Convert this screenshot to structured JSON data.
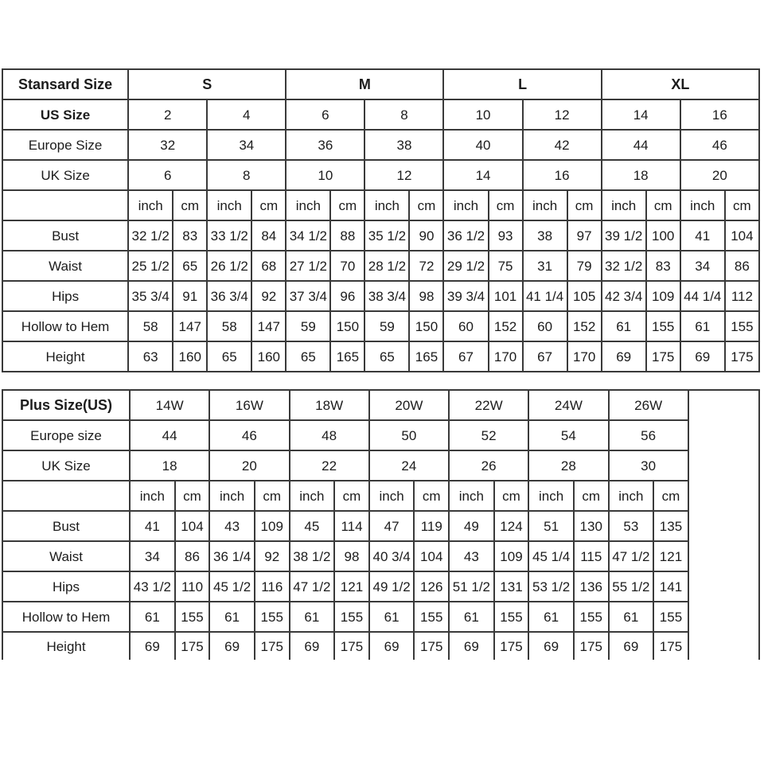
{
  "standard_table": {
    "corner_label": "Stansard Size",
    "size_groups": [
      "S",
      "M",
      "L",
      "XL"
    ],
    "size_groups_bold": true,
    "size_rows": [
      {
        "label": "US Size",
        "bold": true,
        "values": [
          "2",
          "4",
          "6",
          "8",
          "10",
          "12",
          "14",
          "16"
        ]
      },
      {
        "label": "Europe Size",
        "bold": false,
        "values": [
          "32",
          "34",
          "36",
          "38",
          "40",
          "42",
          "44",
          "46"
        ]
      },
      {
        "label": "UK Size",
        "bold": false,
        "values": [
          "6",
          "8",
          "10",
          "12",
          "14",
          "16",
          "18",
          "20"
        ]
      }
    ],
    "unit_row": {
      "units": [
        "inch",
        "cm"
      ]
    },
    "measurement_rows": [
      {
        "label": "Bust",
        "values": [
          "32 1/2",
          "83",
          "33 1/2",
          "84",
          "34 1/2",
          "88",
          "35 1/2",
          "90",
          "36 1/2",
          "93",
          "38",
          "97",
          "39 1/2",
          "100",
          "41",
          "104"
        ]
      },
      {
        "label": "Waist",
        "values": [
          "25 1/2",
          "65",
          "26 1/2",
          "68",
          "27 1/2",
          "70",
          "28 1/2",
          "72",
          "29 1/2",
          "75",
          "31",
          "79",
          "32 1/2",
          "83",
          "34",
          "86"
        ]
      },
      {
        "label": "Hips",
        "values": [
          "35 3/4",
          "91",
          "36 3/4",
          "92",
          "37 3/4",
          "96",
          "38 3/4",
          "98",
          "39 3/4",
          "101",
          "41 1/4",
          "105",
          "42 3/4",
          "109",
          "44 1/4",
          "112"
        ]
      },
      {
        "label": "Hollow to Hem",
        "values": [
          "58",
          "147",
          "58",
          "147",
          "59",
          "150",
          "59",
          "150",
          "60",
          "152",
          "60",
          "152",
          "61",
          "155",
          "61",
          "155"
        ]
      },
      {
        "label": "Height",
        "values": [
          "63",
          "160",
          "65",
          "160",
          "65",
          "165",
          "65",
          "165",
          "67",
          "170",
          "67",
          "170",
          "69",
          "175",
          "69",
          "175"
        ]
      }
    ],
    "trailing_empty_column": false
  },
  "plus_table": {
    "corner_label": "Plus Size(US)",
    "size_groups": [
      "14W",
      "16W",
      "18W",
      "20W",
      "22W",
      "24W",
      "26W"
    ],
    "size_groups_bold": false,
    "size_rows": [
      {
        "label": "Europe size",
        "bold": false,
        "values": [
          "44",
          "46",
          "48",
          "50",
          "52",
          "54",
          "56"
        ]
      },
      {
        "label": "UK Size",
        "bold": false,
        "values": [
          "18",
          "20",
          "22",
          "24",
          "26",
          "28",
          "30"
        ]
      }
    ],
    "unit_row": {
      "units": [
        "inch",
        "cm"
      ]
    },
    "measurement_rows": [
      {
        "label": "Bust",
        "values": [
          "41",
          "104",
          "43",
          "109",
          "45",
          "114",
          "47",
          "119",
          "49",
          "124",
          "51",
          "130",
          "53",
          "135"
        ]
      },
      {
        "label": "Waist",
        "values": [
          "34",
          "86",
          "36 1/4",
          "92",
          "38 1/2",
          "98",
          "40 3/4",
          "104",
          "43",
          "109",
          "45 1/4",
          "115",
          "47 1/2",
          "121"
        ]
      },
      {
        "label": "Hips",
        "values": [
          "43 1/2",
          "110",
          "45 1/2",
          "116",
          "47 1/2",
          "121",
          "49 1/2",
          "126",
          "51 1/2",
          "131",
          "53 1/2",
          "136",
          "55 1/2",
          "141"
        ]
      },
      {
        "label": "Hollow to Hem",
        "values": [
          "61",
          "155",
          "61",
          "155",
          "61",
          "155",
          "61",
          "155",
          "61",
          "155",
          "61",
          "155",
          "61",
          "155"
        ]
      },
      {
        "label": "Height",
        "values": [
          "69",
          "175",
          "69",
          "175",
          "69",
          "175",
          "69",
          "175",
          "69",
          "175",
          "69",
          "175",
          "69",
          "175"
        ]
      }
    ],
    "trailing_empty_column": true
  },
  "colors": {
    "border": "#3a3a3a",
    "text": "#1c1c1c",
    "background": "#ffffff"
  }
}
